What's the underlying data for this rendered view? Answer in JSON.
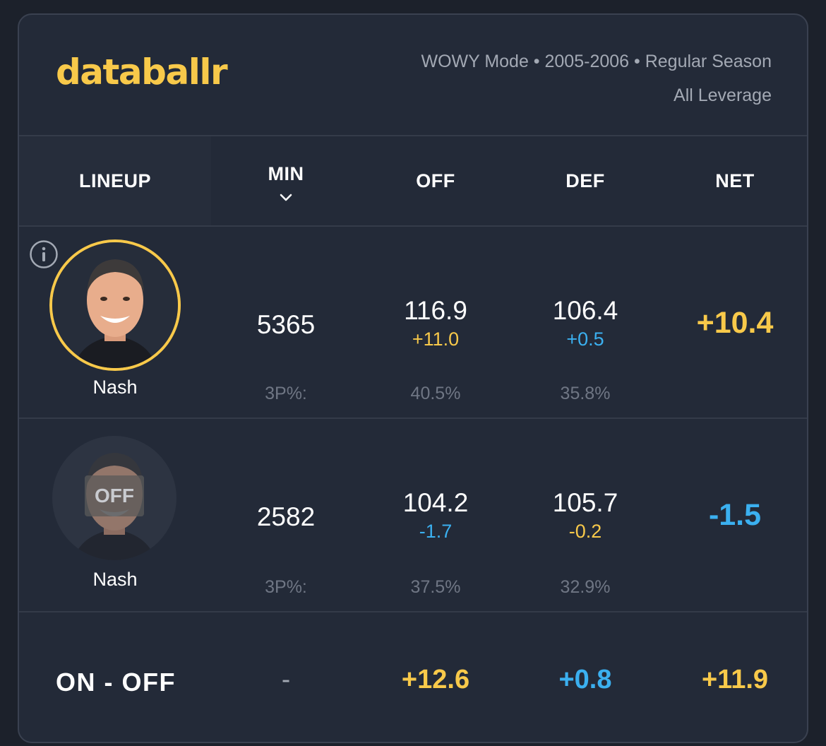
{
  "brand": {
    "logo_text": "databallr"
  },
  "meta": {
    "line1": "WOWY Mode • 2005-2006 • Regular Season",
    "line2": "All Leverage"
  },
  "columns": {
    "lineup": "LINEUP",
    "min": "MIN",
    "off": "OFF",
    "def": "DEF",
    "net": "NET"
  },
  "icons": {
    "sort": "chevron-down-icon",
    "info": "info-icon"
  },
  "rows": [
    {
      "player": "Nash",
      "state": "on",
      "min": "5365",
      "off": "116.9",
      "off_diff": "+11.0",
      "def": "106.4",
      "def_diff": "+0.5",
      "net": "+10.4",
      "tp_label": "3P%:",
      "off_tp": "40.5%",
      "def_tp": "35.8%"
    },
    {
      "player": "Nash",
      "state": "off",
      "badge": "OFF",
      "min": "2582",
      "off": "104.2",
      "off_diff": "-1.7",
      "def": "105.7",
      "def_diff": "-0.2",
      "net": "-1.5",
      "tp_label": "3P%:",
      "off_tp": "37.5%",
      "def_tp": "32.9%"
    }
  ],
  "summary": {
    "label": "ON - OFF",
    "min": "-",
    "off": "+12.6",
    "def": "+0.8",
    "net": "+11.9"
  },
  "colors": {
    "gold": "#f8c94a",
    "blue": "#3bb0f0",
    "card": "#232a38",
    "border": "#3a4150"
  }
}
